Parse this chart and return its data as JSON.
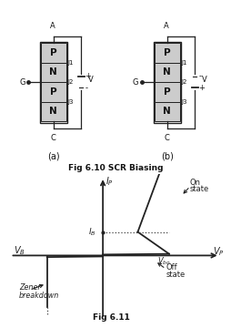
{
  "bg_color": "#ffffff",
  "fig_title_top": "Fig 6.10 SCR Biasing",
  "fig_title_bot": "Fig 6.11",
  "layers_top_to_bottom": [
    "P",
    "N",
    "P",
    "N"
  ],
  "junctions": [
    "J1",
    "J2",
    "J3"
  ],
  "box_color": "#cccccc",
  "line_color": "#222222",
  "text_color": "#111111",
  "plot_line_color": "#222222",
  "dotted_color": "#444444"
}
